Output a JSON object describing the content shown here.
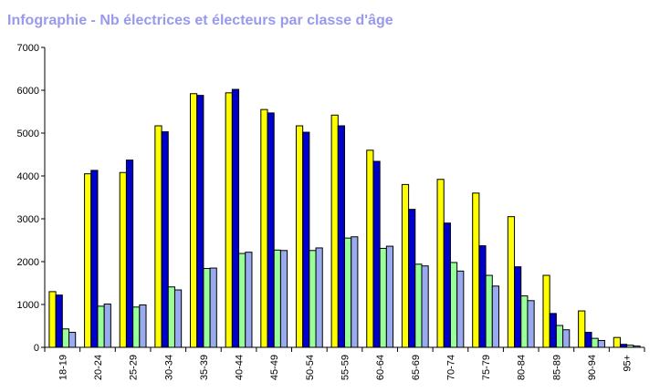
{
  "title": "Infographie - Nb électrices et électeurs par classe d'âge",
  "colors": {
    "title": "#9999ee",
    "series": [
      "#ffff00",
      "#0000cc",
      "#99ff99",
      "#99aaee"
    ]
  },
  "chart_data": {
    "type": "bar",
    "title": "Infographie - Nb électrices et électeurs par classe d'âge",
    "xlabel": "",
    "ylabel": "",
    "ylim": [
      0,
      7000
    ],
    "yticks": [
      "0",
      "1000",
      "2000",
      "3000",
      "4000",
      "5000",
      "6000",
      "7000"
    ],
    "grid": false,
    "legend": "none",
    "categories": [
      "18-19",
      "20-24",
      "25-29",
      "30-34",
      "35-39",
      "40-44",
      "45-49",
      "50-54",
      "55-59",
      "60-64",
      "65-69",
      "70-74",
      "75-79",
      "80-84",
      "85-89",
      "90-94",
      "95+"
    ],
    "series": [
      {
        "color": "#ffff00",
        "values": [
          1300,
          4050,
          4080,
          5170,
          5920,
          5940,
          5550,
          5170,
          5420,
          4600,
          3800,
          3920,
          3600,
          3050,
          1680,
          850,
          230
        ]
      },
      {
        "color": "#0000cc",
        "values": [
          1220,
          4130,
          4370,
          5030,
          5880,
          6020,
          5470,
          5020,
          5170,
          4340,
          3220,
          2900,
          2370,
          1880,
          790,
          350,
          70
        ]
      },
      {
        "color": "#99ff99",
        "values": [
          430,
          960,
          940,
          1410,
          1840,
          2190,
          2270,
          2260,
          2550,
          2310,
          1940,
          1980,
          1680,
          1200,
          510,
          210,
          50
        ]
      },
      {
        "color": "#99aaee",
        "values": [
          350,
          1010,
          990,
          1340,
          1850,
          2220,
          2260,
          2320,
          2580,
          2360,
          1900,
          1780,
          1430,
          1090,
          410,
          160,
          30
        ]
      }
    ]
  }
}
